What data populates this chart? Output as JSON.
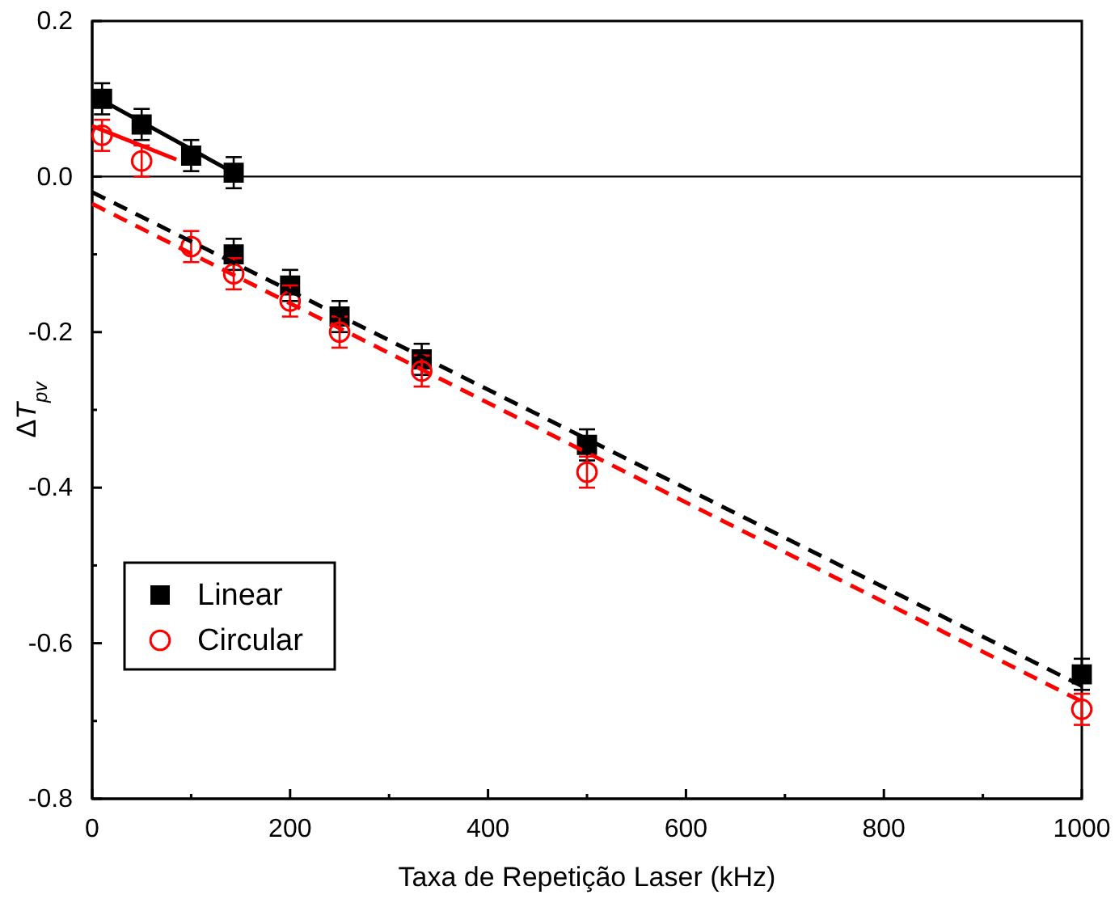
{
  "chart_data": {
    "type": "scatter",
    "xlabel": "Taxa de Repetição Laser (kHz)",
    "ylabel": "ΔT$_{pv}$",
    "xlim": [
      0,
      1000
    ],
    "ylim": [
      -0.8,
      0.2
    ],
    "xticks": [
      0,
      {
        "value": 100,
        "label": null
      },
      200,
      {
        "value": 300,
        "label": null
      },
      400,
      {
        "value": 500,
        "label": null
      },
      600,
      {
        "value": 700,
        "label": null
      },
      800,
      {
        "value": 900,
        "label": null
      },
      1000
    ],
    "yticks": [
      {
        "value": -0.8,
        "label": "-0.8"
      },
      {
        "value": -0.7,
        "label": null
      },
      {
        "value": -0.6,
        "label": "-0.6"
      },
      {
        "value": -0.5,
        "label": null
      },
      {
        "value": -0.4,
        "label": "-0.4"
      },
      {
        "value": -0.3,
        "label": null
      },
      {
        "value": -0.2,
        "label": "-0.2"
      },
      {
        "value": -0.1,
        "label": null
      },
      {
        "value": 0,
        "label": "0.0"
      },
      {
        "value": 0.1,
        "label": null
      },
      {
        "value": 0.2,
        "label": "0.2"
      }
    ],
    "legend": "bottom left",
    "grid": false,
    "ref_lines": [
      {
        "axis": "y",
        "value": 0,
        "color": "#000000"
      }
    ],
    "series": [
      {
        "name": "Linear",
        "marker": "square",
        "color": "#000000",
        "x": [
          10,
          50,
          100,
          143,
          143,
          200,
          250,
          333,
          500,
          1000
        ],
        "values": [
          0.1,
          0.067,
          0.027,
          0.005,
          -0.1,
          -0.14,
          -0.18,
          -0.235,
          -0.345,
          -0.64
        ],
        "errors": [
          0.02,
          0.02,
          0.02,
          0.02,
          0.02,
          0.02,
          0.02,
          0.02,
          0.02,
          0.02
        ]
      },
      {
        "name": "Circular",
        "marker": "circle",
        "color": "#ff0000",
        "x": [
          10,
          50,
          100,
          143,
          200,
          250,
          333,
          500,
          1000
        ],
        "values": [
          0.053,
          0.02,
          -0.09,
          -0.125,
          -0.16,
          -0.2,
          -0.25,
          -0.38,
          -0.685
        ],
        "errors": [
          0.02,
          0.02,
          0.02,
          0.02,
          0.02,
          0.02,
          0.02,
          0.02,
          0.02
        ]
      },
      {
        "type": "line",
        "line_style": "solid",
        "color": "#000000",
        "x": [
          0,
          143
        ],
        "values": [
          0.105,
          0.005
        ]
      },
      {
        "type": "line",
        "line_style": "solid",
        "color": "#ff0000",
        "x": [
          0,
          85
        ],
        "values": [
          0.065,
          0.022
        ]
      },
      {
        "type": "line",
        "line_style": "dashed",
        "color": "#000000",
        "x": [
          0,
          1000
        ],
        "values": [
          -0.02,
          -0.655
        ]
      },
      {
        "type": "line",
        "line_style": "dashed",
        "color": "#ff0000",
        "x": [
          0,
          1000
        ],
        "values": [
          -0.035,
          -0.675
        ]
      }
    ]
  }
}
